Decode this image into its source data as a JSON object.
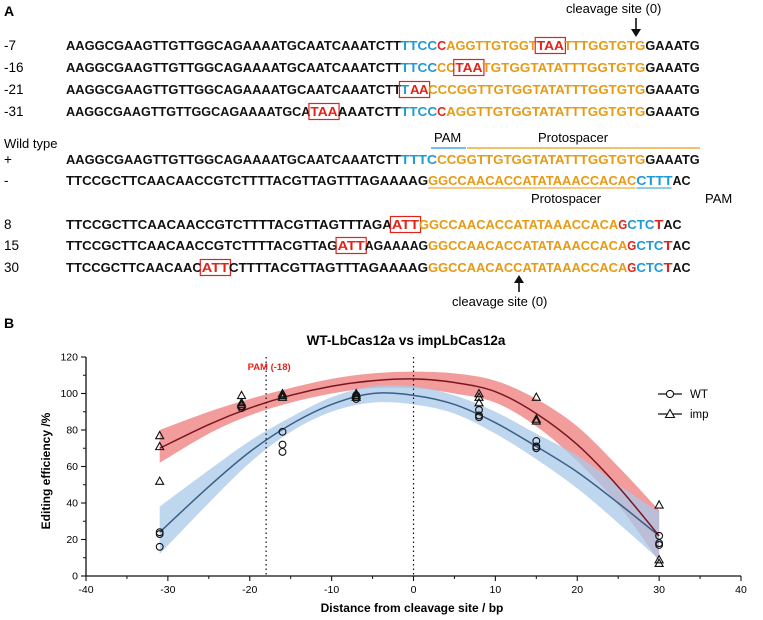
{
  "panels": {
    "a": "A",
    "b": "B"
  },
  "colors": {
    "black": "#111111",
    "blue": "#1e9ad6",
    "orange": "#e79a12",
    "red": "#e2231a",
    "box": "#e2231a",
    "wt_line": "#3a5f86",
    "wt_band": "#a9c8ea",
    "imp_line": "#7a1620",
    "imp_band": "#f08b8b"
  },
  "top_annotation": "cleavage site (0)",
  "bottom_annotation": "cleavage site (0)",
  "top_rows": [
    {
      "label": "-7",
      "segments": [
        {
          "t": "AAGGCGAAGTTGTTGGCAGAAAATGCAATCAAATCTT",
          "c": "black"
        },
        {
          "t": "TTCC",
          "c": "blue"
        },
        {
          "t": "C",
          "c": "red"
        },
        {
          "t": "AGGTTGTGGT",
          "c": "orange"
        },
        {
          "t": "TAA",
          "c": "red",
          "box": true
        },
        {
          "t": "TTTGGTGTG",
          "c": "orange"
        },
        {
          "t": "GAAATG",
          "c": "black"
        }
      ]
    },
    {
      "label": "-16",
      "segments": [
        {
          "t": "AAGGCGAAGTTGTTGGCAGAAAATGCAATCAAATCTT",
          "c": "black"
        },
        {
          "t": "TTCC",
          "c": "blue"
        },
        {
          "t": "CC",
          "c": "orange"
        },
        {
          "t": "TAA",
          "c": "red",
          "box": true
        },
        {
          "t": "TGTGGTATATTTGGTGTG",
          "c": "orange"
        },
        {
          "t": "GAAATG",
          "c": "black"
        }
      ]
    },
    {
      "label": "-21",
      "segments": [
        {
          "t": "AAGGCGAAGTTGTTGGCAGAAAATGCAATCAAATCTT",
          "c": "black"
        },
        {
          "t": "TAA",
          "c": "mixed",
          "box": true
        },
        {
          "t": "CCCGGTTGTGGTATATTTGGTGTG",
          "c": "orange"
        },
        {
          "t": "GAAATG",
          "c": "black"
        }
      ]
    },
    {
      "label": "-31",
      "segments": [
        {
          "t": "AAGGCGAAGTTGTTGGCAGAAAATGCA",
          "c": "black"
        },
        {
          "t": "TAA",
          "c": "red",
          "box": true
        },
        {
          "t": "AAATCTT",
          "c": "black"
        },
        {
          "t": "TTCC",
          "c": "blue"
        },
        {
          "t": "C",
          "c": "red"
        },
        {
          "t": "AGGTTGTGGTATATTTGGTGTG",
          "c": "orange"
        },
        {
          "t": "GAAATG",
          "c": "black"
        }
      ]
    }
  ],
  "wild_type": {
    "title": "Wild type",
    "pam_top": "PAM",
    "protospacer_top": "Protospacer",
    "protospacer_bottom": "Protospacer",
    "pam_bottom": "PAM",
    "plus": {
      "label": "+",
      "segments": [
        {
          "t": "AAGGCGAAGTTGTTGGCAGAAAATGCAATCAAATCTT",
          "c": "black"
        },
        {
          "t": "TTTC",
          "c": "blue"
        },
        {
          "t": "CCGGTTGTGGTATATTTGGTGTG",
          "c": "orange"
        },
        {
          "t": "GAAATG",
          "c": "black"
        }
      ]
    },
    "minus": {
      "label": "-",
      "segments": [
        {
          "t": "TTCCGCTTCAACAACCGTCTTTTACGTTAGTTTAGAAAAG",
          "c": "black"
        },
        {
          "t": "GGCCAACACCATATAAACCACAC",
          "c": "orange",
          "underline": true
        },
        {
          "t": "CTTT",
          "c": "blue",
          "underline": true
        },
        {
          "t": "AC",
          "c": "black"
        }
      ]
    }
  },
  "bottom_rows": [
    {
      "label": "8",
      "segments": [
        {
          "t": "TTCCGCTTCAACAACCGTCTTTTACGTTAGTTTAGA",
          "c": "black"
        },
        {
          "t": "ATT",
          "c": "red",
          "box": true
        },
        {
          "t": "GGCCAACACCATATAAACCACA",
          "c": "orange"
        },
        {
          "t": "G",
          "c": "red"
        },
        {
          "t": "CTC",
          "c": "blue"
        },
        {
          "t": "T",
          "c": "red"
        },
        {
          "t": "AC",
          "c": "black"
        }
      ]
    },
    {
      "label": "15",
      "segments": [
        {
          "t": "TTCCGCTTCAACAACCGTCTTTTACGTTAG",
          "c": "black"
        },
        {
          "t": "ATT",
          "c": "red",
          "box": true
        },
        {
          "t": "AGAAAAG",
          "c": "black"
        },
        {
          "t": "GGCCAACACCATATAAACCACA",
          "c": "orange"
        },
        {
          "t": "G",
          "c": "red"
        },
        {
          "t": "CTC",
          "c": "blue"
        },
        {
          "t": "T",
          "c": "red"
        },
        {
          "t": "AC",
          "c": "black"
        }
      ]
    },
    {
      "label": "30",
      "segments": [
        {
          "t": "TTCCGCTTCAACAAC",
          "c": "black"
        },
        {
          "t": "ATT",
          "c": "red",
          "box": true
        },
        {
          "t": "CTTTTACGTTAGTTTAGAAAAG",
          "c": "black"
        },
        {
          "t": "GGCCAACACCATATAAACCACA",
          "c": "orange"
        },
        {
          "t": "G",
          "c": "red"
        },
        {
          "t": "CTC",
          "c": "blue"
        },
        {
          "t": "T",
          "c": "red"
        },
        {
          "t": "AC",
          "c": "black"
        }
      ]
    }
  ],
  "chart_data": {
    "type": "scatter",
    "title": "WT-LbCas12a vs impLbCas12a",
    "xlabel": "Distance from cleavage site / bp",
    "ylabel": "Editing efficiency /%",
    "xlim": [
      -40,
      40
    ],
    "ylim": [
      0,
      120
    ],
    "xticks": [
      -40,
      -30,
      -20,
      -10,
      0,
      10,
      20,
      30,
      40
    ],
    "yticks": [
      0,
      20,
      40,
      60,
      80,
      100,
      120
    ],
    "legend_position": "top-right",
    "vlines": [
      {
        "x": -18,
        "label": "PAM (-18)",
        "style": "dotted"
      },
      {
        "x": 0,
        "label": "",
        "style": "dotted"
      }
    ],
    "series": [
      {
        "name": "WT",
        "marker": "circle",
        "points": [
          {
            "x": -31,
            "y": 24
          },
          {
            "x": -31,
            "y": 23
          },
          {
            "x": -31,
            "y": 16
          },
          {
            "x": -21,
            "y": 93
          },
          {
            "x": -21,
            "y": 93
          },
          {
            "x": -21,
            "y": 92
          },
          {
            "x": -16,
            "y": 79
          },
          {
            "x": -16,
            "y": 72
          },
          {
            "x": -16,
            "y": 68
          },
          {
            "x": -7,
            "y": 99
          },
          {
            "x": -7,
            "y": 98
          },
          {
            "x": -7,
            "y": 97
          },
          {
            "x": 8,
            "y": 91
          },
          {
            "x": 8,
            "y": 88
          },
          {
            "x": 8,
            "y": 87
          },
          {
            "x": 15,
            "y": 74
          },
          {
            "x": 15,
            "y": 71
          },
          {
            "x": 15,
            "y": 70
          },
          {
            "x": 30,
            "y": 22
          },
          {
            "x": 30,
            "y": 18
          },
          {
            "x": 30,
            "y": 17
          }
        ],
        "fit": {
          "x": [
            -31,
            -25,
            -20,
            -15,
            -10,
            -5,
            0,
            5,
            10,
            15,
            20,
            25,
            30
          ],
          "y": [
            24,
            49,
            68,
            83,
            94,
            100,
            99,
            94,
            84,
            71,
            57,
            40,
            22
          ]
        },
        "band": {
          "lower": [
            12,
            40,
            62,
            79,
            90,
            95,
            94,
            89,
            78,
            64,
            48,
            29,
            9
          ],
          "upper": [
            38,
            58,
            74,
            87,
            98,
            104,
            104,
            99,
            90,
            78,
            66,
            50,
            35
          ]
        }
      },
      {
        "name": "imp",
        "marker": "triangle",
        "points": [
          {
            "x": -31,
            "y": 77
          },
          {
            "x": -31,
            "y": 71
          },
          {
            "x": -31,
            "y": 52
          },
          {
            "x": -21,
            "y": 99
          },
          {
            "x": -21,
            "y": 95
          },
          {
            "x": -21,
            "y": 94
          },
          {
            "x": -16,
            "y": 100
          },
          {
            "x": -16,
            "y": 99
          },
          {
            "x": -16,
            "y": 98
          },
          {
            "x": -7,
            "y": 100
          },
          {
            "x": -7,
            "y": 99
          },
          {
            "x": -7,
            "y": 98
          },
          {
            "x": 8,
            "y": 100
          },
          {
            "x": 8,
            "y": 98
          },
          {
            "x": 8,
            "y": 95
          },
          {
            "x": 15,
            "y": 98
          },
          {
            "x": 15,
            "y": 86
          },
          {
            "x": 15,
            "y": 85
          },
          {
            "x": 30,
            "y": 39
          },
          {
            "x": 30,
            "y": 9
          },
          {
            "x": 30,
            "y": 7
          }
        ],
        "fit": {
          "x": [
            -31,
            -25,
            -20,
            -15,
            -10,
            -5,
            0,
            5,
            10,
            15,
            20,
            25,
            30
          ],
          "y": [
            70,
            83,
            92,
            99,
            104,
            107,
            108,
            106,
            101,
            89,
            72,
            49,
            22
          ]
        },
        "band": {
          "lower": [
            62,
            78,
            88,
            95,
            100,
            103,
            103,
            100,
            95,
            82,
            63,
            39,
            8
          ],
          "upper": [
            80,
            90,
            97,
            103,
            108,
            111,
            112,
            111,
            107,
            97,
            82,
            60,
            36
          ]
        }
      }
    ]
  }
}
